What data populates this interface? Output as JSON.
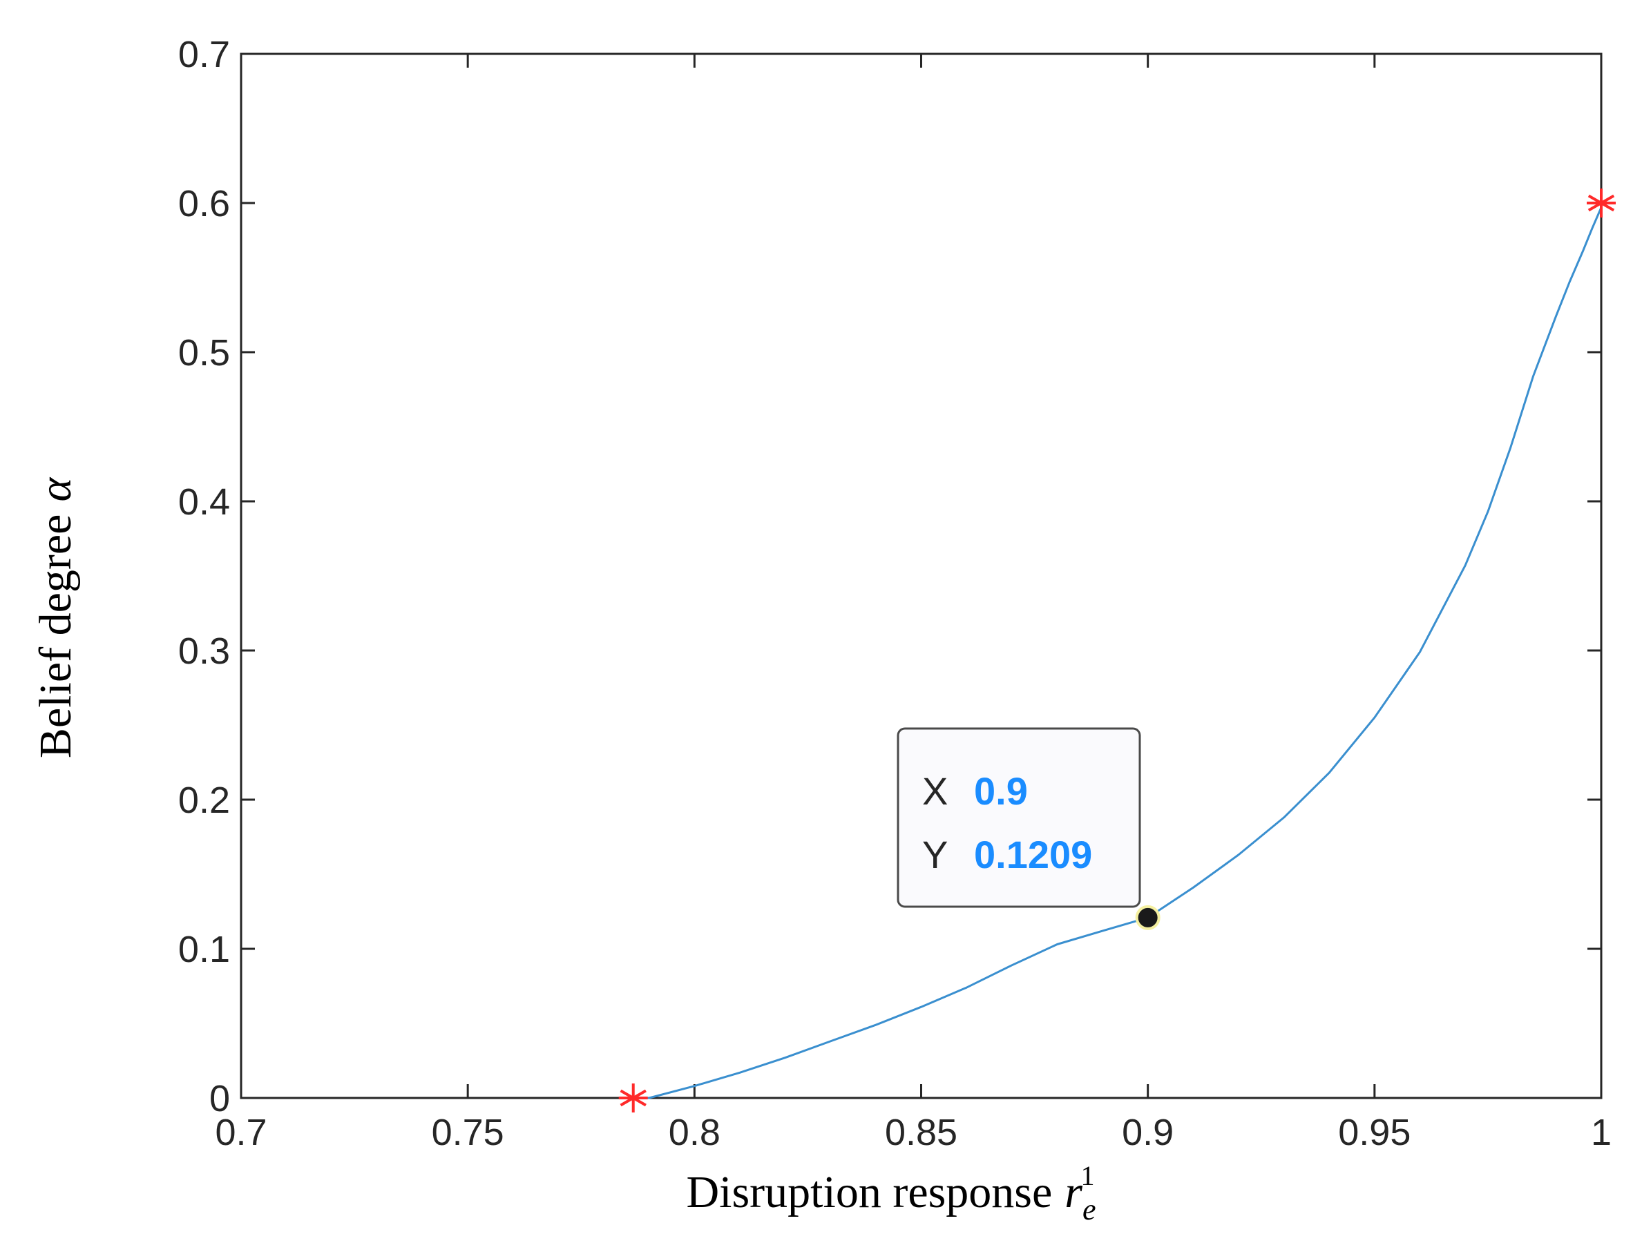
{
  "chart_data": {
    "type": "line",
    "xlabel": "Disruption response",
    "xlabel_symbol": "r",
    "xlabel_symbol_sub": "e",
    "xlabel_symbol_sup": "1",
    "ylabel": "Belief degree",
    "ylabel_symbol": "α",
    "xlim": [
      0.7,
      1.0
    ],
    "ylim": [
      0,
      0.7
    ],
    "xticks": [
      0.7,
      0.75,
      0.8,
      0.85,
      0.9,
      0.95,
      1.0
    ],
    "xtick_labels": [
      "0.7",
      "0.75",
      "0.8",
      "0.85",
      "0.9",
      "0.95",
      "1"
    ],
    "yticks": [
      0,
      0.1,
      0.2,
      0.3,
      0.4,
      0.5,
      0.6,
      0.7
    ],
    "ytick_labels": [
      "0",
      "0.1",
      "0.2",
      "0.3",
      "0.4",
      "0.5",
      "0.6",
      "0.7"
    ],
    "grid": false,
    "series": [
      {
        "color": "#3a8fcf",
        "x": [
          0.7875,
          0.79,
          0.8,
          0.81,
          0.82,
          0.83,
          0.84,
          0.85,
          0.86,
          0.87,
          0.88,
          0.89,
          0.9,
          0.91,
          0.92,
          0.93,
          0.94,
          0.95,
          0.96,
          0.97,
          0.975,
          0.98,
          0.985,
          0.99,
          0.993,
          0.996,
          0.998,
          1.0
        ],
        "y": [
          0.0,
          0.0,
          0.008,
          0.017,
          0.027,
          0.038,
          0.049,
          0.061,
          0.074,
          0.089,
          0.103,
          0.112,
          0.1209,
          0.141,
          0.163,
          0.188,
          0.218,
          0.255,
          0.299,
          0.357,
          0.393,
          0.436,
          0.484,
          0.524,
          0.547,
          0.568,
          0.583,
          0.597
        ]
      }
    ],
    "endpoints": {
      "color": "#ff2a2a",
      "marker": "asterisk",
      "points": [
        {
          "x": 0.7865,
          "y": 0.0
        },
        {
          "x": 1.0,
          "y": 0.6
        }
      ]
    },
    "datatip": {
      "x": 0.9,
      "y": 0.1209,
      "x_key": "X",
      "y_key": "Y",
      "x_text": "0.9",
      "y_text": "0.1209",
      "value_color": "#1a8cff"
    }
  }
}
